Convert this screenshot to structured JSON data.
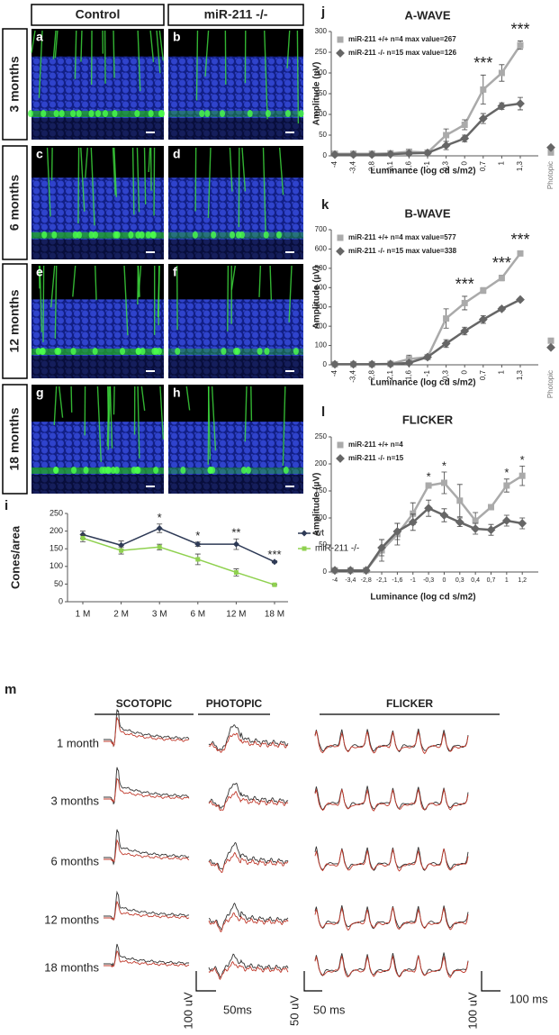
{
  "images": {
    "columns": [
      "Control",
      "miR-211 -/-"
    ],
    "rows": [
      "3 months",
      "6 months",
      "12 months",
      "18 months"
    ],
    "letters": [
      "a",
      "b",
      "c",
      "d",
      "e",
      "f",
      "g",
      "h"
    ]
  },
  "chart_data": [
    {
      "type": "line",
      "letter": "i",
      "ylabel": "Cones/area",
      "categories": [
        "1 M",
        "2 M",
        "3 M",
        "6 M",
        "12 M",
        "18 M"
      ],
      "ylim": [
        0,
        250
      ],
      "yticks": [
        0,
        50,
        100,
        150,
        200,
        250
      ],
      "series": [
        {
          "name": "wt",
          "color": "#2e3a56",
          "marker": "diamond",
          "values": [
            190,
            160,
            208,
            163,
            163,
            113
          ],
          "errors": [
            10,
            12,
            12,
            6,
            15,
            3
          ]
        },
        {
          "name": "miR-211 -/-",
          "color": "#8fd14f",
          "marker": "square",
          "values": [
            180,
            145,
            155,
            120,
            83,
            48
          ],
          "errors": [
            10,
            10,
            8,
            15,
            10,
            2
          ]
        }
      ],
      "significance": [
        null,
        null,
        "*",
        "*",
        "**",
        "***"
      ]
    },
    {
      "type": "line",
      "letter": "j",
      "title": "A-WAVE",
      "xlabel": "Luminance (log cd s/m2)",
      "ylabel": "Amplitude (µV)",
      "categories": [
        "-4",
        "-3,4",
        "-2,8",
        "-2,1",
        "-1,6",
        "-1",
        "-0,3",
        "0",
        "0,7",
        "1",
        "1,3"
      ],
      "photopic_category": "Photopic",
      "ylim": [
        0,
        300
      ],
      "yticks": [
        0,
        50,
        100,
        150,
        200,
        250,
        300
      ],
      "series": [
        {
          "name": "miR-211 +/+ n=4 max value=267",
          "color": "#aaaaaa",
          "marker": "square",
          "values": [
            5,
            5,
            5,
            6,
            10,
            8,
            50,
            75,
            160,
            200,
            267
          ],
          "errors": [
            2,
            2,
            2,
            2,
            3,
            3,
            15,
            12,
            35,
            20,
            10
          ],
          "photopic_value": 8
        },
        {
          "name": "miR-211 -/- n=15 max value=126",
          "color": "#666666",
          "marker": "diamond",
          "values": [
            3,
            3,
            3,
            4,
            6,
            7,
            25,
            42,
            90,
            120,
            126
          ],
          "errors": [
            2,
            2,
            2,
            2,
            2,
            3,
            10,
            8,
            12,
            8,
            15
          ],
          "photopic_value": 20
        }
      ],
      "significance": [
        null,
        null,
        null,
        null,
        null,
        null,
        null,
        null,
        "***",
        null,
        "***"
      ]
    },
    {
      "type": "line",
      "letter": "k",
      "title": "B-WAVE",
      "xlabel": "Luminance (log cd s/m2)",
      "ylabel": "Amplitude (µV)",
      "categories": [
        "-4",
        "-3,4",
        "-2,8",
        "-2,1",
        "-1,6",
        "-1",
        "-0,3",
        "0",
        "0,7",
        "1",
        "1,3"
      ],
      "photopic_category": "Photopic",
      "ylim": [
        0,
        700
      ],
      "yticks": [
        0,
        100,
        200,
        300,
        400,
        500,
        600,
        700
      ],
      "series": [
        {
          "name": "miR-211 +/+ n=4 max value=577",
          "color": "#aaaaaa",
          "marker": "square",
          "values": [
            3,
            3,
            3,
            5,
            30,
            40,
            240,
            320,
            385,
            450,
            577
          ],
          "errors": [
            3,
            3,
            3,
            3,
            20,
            5,
            50,
            35,
            15,
            15,
            10
          ],
          "photopic_value": 125
        },
        {
          "name": "miR-211 -/- n=15 max value=338",
          "color": "#666666",
          "marker": "diamond",
          "values": [
            3,
            3,
            3,
            4,
            10,
            40,
            110,
            175,
            235,
            290,
            338
          ],
          "errors": [
            2,
            2,
            2,
            2,
            10,
            5,
            20,
            20,
            20,
            10,
            8
          ],
          "photopic_value": 90
        }
      ],
      "significance": [
        null,
        null,
        null,
        null,
        null,
        null,
        null,
        "***",
        null,
        "***",
        "***"
      ]
    },
    {
      "type": "line",
      "letter": "l",
      "title": "FLICKER",
      "xlabel": "Luminance (log cd s/m2)",
      "ylabel": "Amplitude (µV)",
      "categories": [
        "-4",
        "-3,4",
        "-2,8",
        "-2,1",
        "-1,6",
        "-1",
        "-0,3",
        "0",
        "0,3",
        "0,4",
        "0,7",
        "1",
        "1,2"
      ],
      "ylim": [
        0,
        250
      ],
      "yticks": [
        0,
        50,
        100,
        150,
        200,
        250
      ],
      "series": [
        {
          "name": "miR-211 +/+ n=4",
          "color": "#aaaaaa",
          "marker": "square",
          "values": [
            3,
            3,
            3,
            40,
            70,
            108,
            160,
            165,
            132,
            95,
            120,
            160,
            178
          ],
          "errors": [
            2,
            2,
            2,
            20,
            20,
            20,
            5,
            20,
            30,
            15,
            5,
            12,
            18
          ]
        },
        {
          "name": "miR-211 -/- n=15",
          "color": "#666666",
          "marker": "diamond",
          "values": [
            3,
            3,
            3,
            45,
            75,
            92,
            118,
            105,
            92,
            80,
            78,
            95,
            90
          ],
          "errors": [
            2,
            2,
            2,
            15,
            15,
            15,
            15,
            12,
            8,
            10,
            10,
            10,
            10
          ]
        }
      ],
      "significance": [
        null,
        null,
        null,
        null,
        null,
        null,
        "*",
        "*",
        null,
        null,
        null,
        "*",
        "*"
      ]
    }
  ],
  "erg": {
    "letter": "m",
    "protocols": [
      "SCOTOPIC",
      "PHOTOPIC",
      "FLICKER"
    ],
    "ages": [
      "1 month",
      "3 months",
      "6 months",
      "12 months",
      "18 months"
    ],
    "scale_bars": [
      "100 uV",
      "50ms",
      "50 uV",
      "50 ms",
      "100 uV",
      "100 ms"
    ]
  }
}
